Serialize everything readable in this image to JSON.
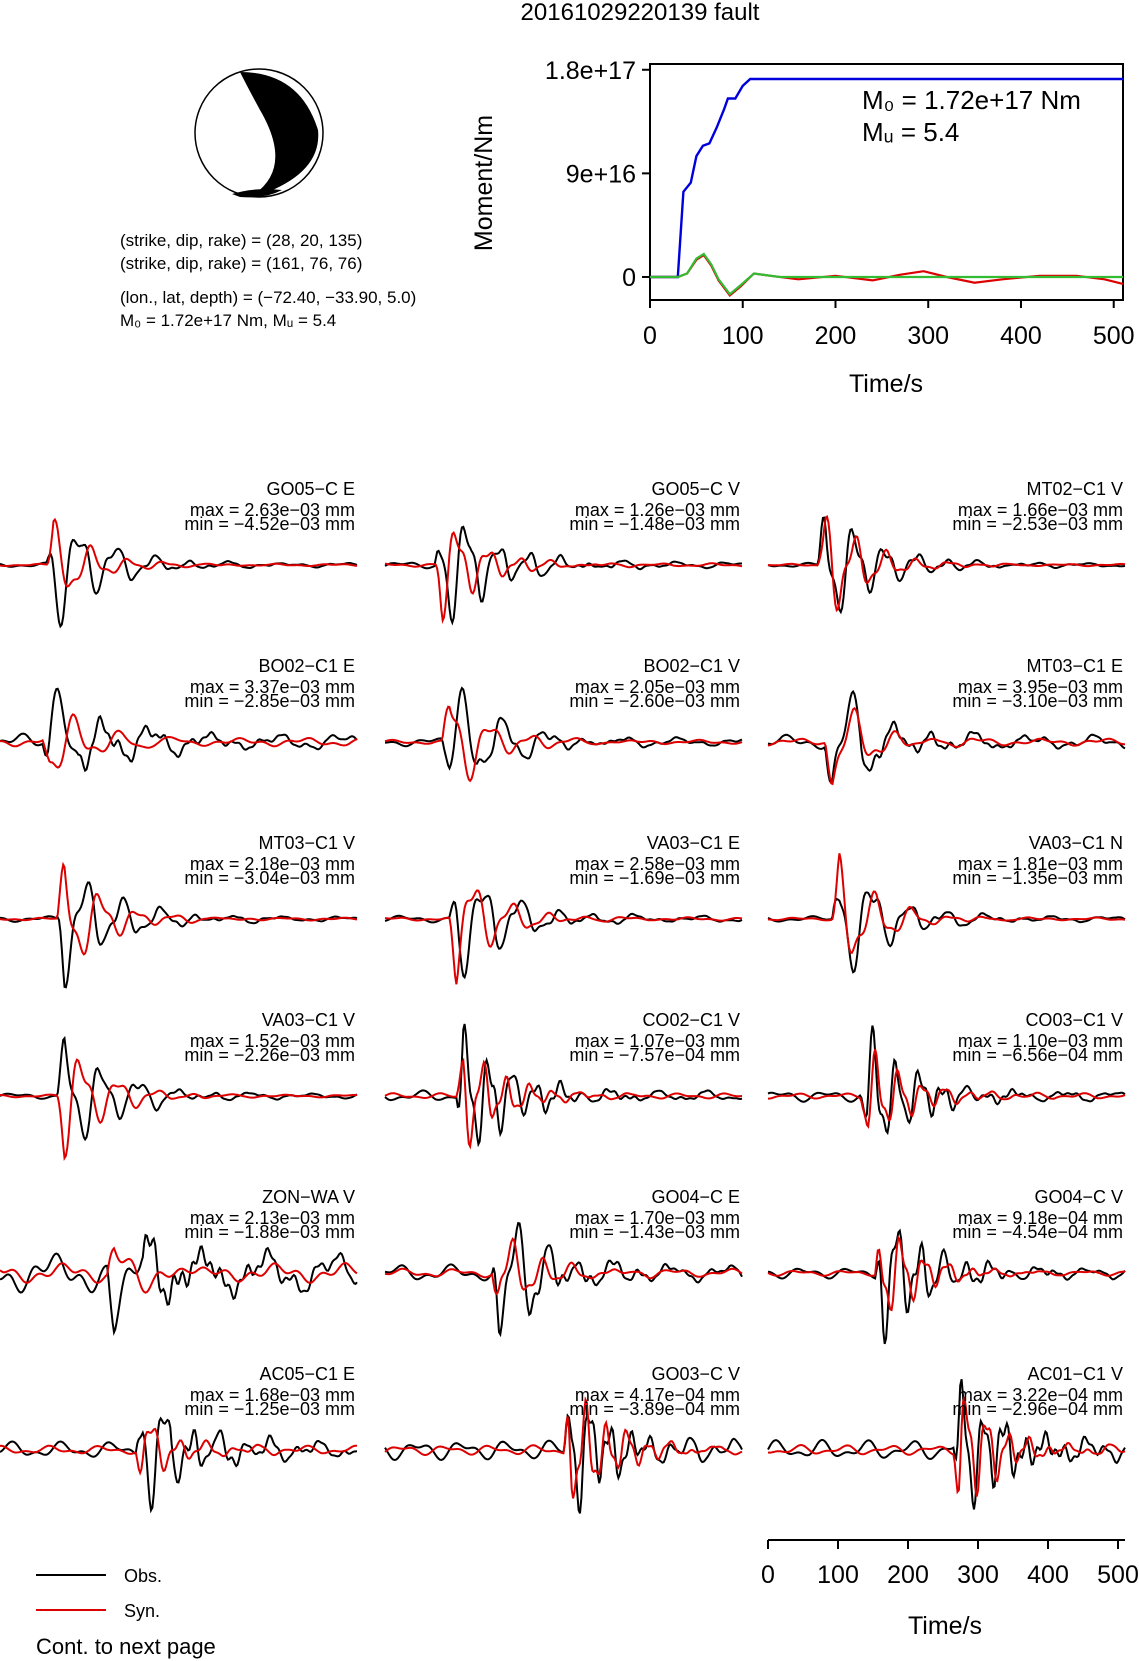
{
  "page": {
    "title": "20161029220139 fault",
    "cont_note": "Cont. to next page"
  },
  "colors": {
    "observed": "#000000",
    "synthetic": "#dd0000",
    "moment_cumulative": "#0000dd",
    "rate_obs": "#33bb33",
    "rate_syn": "#dd0000",
    "beachball_fill": "#000000"
  },
  "source_info": {
    "line1": "(strike, dip, rake) = (28, 20, 135)",
    "line2": "(strike, dip, rake) = (161, 76, 76)",
    "line3": "(lon., lat, depth) = (−72.40, −33.90, 5.0)",
    "line4": "M₀ = 1.72e+17 Nm, Mᵤ = 5.4"
  },
  "chart_data": [
    {
      "type": "line",
      "name": "moment",
      "ylabel": "Moment/Nm",
      "xlabel": "Time/s",
      "xlim": [
        0,
        510
      ],
      "ylim": [
        -20000000000000000,
        185000000000000000
      ],
      "xticks": [
        "0",
        "100",
        "200",
        "300",
        "400",
        "500"
      ],
      "yticks": [
        "0",
        "9e+16",
        "1.8e+17"
      ],
      "annotations": [
        "M₀ = 1.72e+17 Nm",
        "Mᵤ = 5.4"
      ],
      "series": [
        {
          "values": [
            [
              0,
              0
            ],
            [
              30,
              0
            ],
            [
              36,
              7.4e+16
            ],
            [
              44,
              8.2e+16
            ],
            [
              50,
              1.05e+17
            ],
            [
              57,
              1.14e+17
            ],
            [
              64,
              1.16e+17
            ],
            [
              72,
              1.3e+17
            ],
            [
              80,
              1.46e+17
            ],
            [
              84,
              1.55e+17
            ],
            [
              92,
              1.55e+17
            ],
            [
              100,
              1.66e+17
            ],
            [
              108,
              1.72e+17
            ],
            [
              510,
              1.72e+17
            ]
          ]
        },
        {
          "values": [
            [
              0,
              0
            ],
            [
              30,
              0
            ],
            [
              40,
              3000000000000000.0
            ],
            [
              50,
              1.5e+16
            ],
            [
              58,
              1.9e+16
            ],
            [
              66,
              1e+16
            ],
            [
              74,
              -3000000000000000.0
            ],
            [
              86,
              -1.6e+16
            ],
            [
              98,
              -8000000000000000.0
            ],
            [
              112,
              3000000000000000.0
            ],
            [
              130,
              1000000000000000.0
            ],
            [
              160,
              -2000000000000000.0
            ],
            [
              200,
              1000000000000000.0
            ],
            [
              240,
              -3000000000000000.0
            ],
            [
              270,
              2000000000000000.0
            ],
            [
              295,
              5000000000000000.0
            ],
            [
              320,
              0
            ],
            [
              350,
              -5000000000000000.0
            ],
            [
              380,
              -2000000000000000.0
            ],
            [
              420,
              1000000000000000.0
            ],
            [
              460,
              1000000000000000.0
            ],
            [
              490,
              -2000000000000000.0
            ],
            [
              510,
              -6000000000000000.0
            ]
          ]
        },
        {
          "values": [
            [
              0,
              0
            ],
            [
              30,
              0
            ],
            [
              40,
              3000000000000000.0
            ],
            [
              50,
              1.6e+16
            ],
            [
              58,
              2e+16
            ],
            [
              66,
              1.1e+16
            ],
            [
              74,
              -2000000000000000.0
            ],
            [
              86,
              -1.5e+16
            ],
            [
              98,
              -7000000000000000.0
            ],
            [
              112,
              3000000000000000.0
            ],
            [
              140,
              0
            ],
            [
              510,
              0
            ]
          ]
        }
      ]
    },
    {
      "type": "line",
      "name": "waveforms",
      "xlabel": "Time/s",
      "xlim": [
        0,
        510
      ],
      "xticks": [
        "0",
        "100",
        "200",
        "300",
        "400",
        "500"
      ],
      "legend": [
        "Obs.",
        "Syn."
      ],
      "panels": [
        {
          "station": "GO05−C E",
          "max": "max = 2.63e−03 mm",
          "min": "min = −4.52e−03 mm",
          "onset": 0.13,
          "amp_syn": 0.6,
          "amp_obs": 0.85,
          "noise": 0.08,
          "freq": 1.0,
          "seed": 1
        },
        {
          "station": "GO05−C V",
          "max": "max = 1.26e−03 mm",
          "min": "min = −1.48e−03 mm",
          "onset": 0.14,
          "amp_syn": 0.75,
          "amp_obs": 0.9,
          "noise": 0.12,
          "freq": 1.2,
          "seed": 2
        },
        {
          "station": "MT02−C1 V",
          "max": "max = 1.66e−03 mm",
          "min": "min = −2.53e−03 mm",
          "onset": 0.14,
          "amp_syn": 0.85,
          "amp_obs": 0.85,
          "noise": 0.08,
          "freq": 1.2,
          "seed": 3
        },
        {
          "station": "BO02−C1 E",
          "max": "max = 3.37e−03 mm",
          "min": "min = −2.85e−03 mm",
          "onset": 0.12,
          "amp_syn": 0.65,
          "amp_obs": 0.85,
          "noise": 0.3,
          "freq": 0.8,
          "seed": 4
        },
        {
          "station": "BO02−C1 V",
          "max": "max = 2.05e−03 mm",
          "min": "min = −2.60e−03 mm",
          "onset": 0.16,
          "amp_syn": 0.8,
          "amp_obs": 0.85,
          "noise": 0.15,
          "freq": 0.9,
          "seed": 5
        },
        {
          "station": "MT03−C1 E",
          "max": "max = 3.95e−03 mm",
          "min": "min = −3.10e−03 mm",
          "onset": 0.16,
          "amp_syn": 0.7,
          "amp_obs": 0.85,
          "noise": 0.25,
          "freq": 0.9,
          "seed": 6
        },
        {
          "station": "MT03−C1 V",
          "max": "max = 2.18e−03 mm",
          "min": "min = −3.04e−03 mm",
          "onset": 0.16,
          "amp_syn": 0.85,
          "amp_obs": 0.85,
          "noise": 0.1,
          "freq": 1.0,
          "seed": 7
        },
        {
          "station": "VA03−C1 E",
          "max": "max = 2.58e−03 mm",
          "min": "min = −1.69e−03 mm",
          "onset": 0.18,
          "amp_syn": 0.85,
          "amp_obs": 0.85,
          "noise": 0.12,
          "freq": 1.0,
          "seed": 8
        },
        {
          "station": "VA03−C1 N",
          "max": "max = 1.81e−03 mm",
          "min": "min = −1.35e−03 mm",
          "onset": 0.18,
          "amp_syn": 0.85,
          "amp_obs": 0.85,
          "noise": 0.1,
          "freq": 1.0,
          "seed": 9
        },
        {
          "station": "VA03−C1 V",
          "max": "max = 1.52e−03 mm",
          "min": "min = −2.26e−03 mm",
          "onset": 0.16,
          "amp_syn": 0.85,
          "amp_obs": 0.85,
          "noise": 0.1,
          "freq": 1.0,
          "seed": 10
        },
        {
          "station": "CO02−C1 V",
          "max": "max = 1.07e−03 mm",
          "min": "min = −7.57e−04 mm",
          "onset": 0.2,
          "amp_syn": 0.75,
          "amp_obs": 0.9,
          "noise": 0.2,
          "freq": 1.6,
          "seed": 11
        },
        {
          "station": "CO03−C1 V",
          "max": "max = 1.10e−03 mm",
          "min": "min = −6.56e−04 mm",
          "onset": 0.26,
          "amp_syn": 0.7,
          "amp_obs": 0.9,
          "noise": 0.2,
          "freq": 1.6,
          "seed": 12
        },
        {
          "station": "ZON−WA V",
          "max": "max = 2.13e−03 mm",
          "min": "min = −1.88e−03 mm",
          "onset": 0.3,
          "amp_syn": 0.55,
          "amp_obs": 0.95,
          "noise": 0.7,
          "freq": 0.6,
          "seed": 13
        },
        {
          "station": "GO04−C E",
          "max": "max = 1.70e−03 mm",
          "min": "min = −1.43e−03 mm",
          "onset": 0.3,
          "amp_syn": 0.6,
          "amp_obs": 0.9,
          "noise": 0.3,
          "freq": 1.2,
          "seed": 14
        },
        {
          "station": "GO04−C V",
          "max": "max = 9.18e−04 mm",
          "min": "min = −4.54e−04 mm",
          "onset": 0.3,
          "amp_syn": 0.75,
          "amp_obs": 0.9,
          "noise": 0.2,
          "freq": 1.6,
          "seed": 15
        },
        {
          "station": "AC05−C1 E",
          "max": "max = 1.68e−03 mm",
          "min": "min = −1.25e−03 mm",
          "onset": 0.38,
          "amp_syn": 0.5,
          "amp_obs": 0.9,
          "noise": 0.3,
          "freq": 1.4,
          "seed": 16
        },
        {
          "station": "GO03−C V",
          "max": "max = 4.17e−04 mm",
          "min": "min = −3.89e−04 mm",
          "onset": 0.5,
          "amp_syn": 0.9,
          "amp_obs": 0.85,
          "noise": 0.35,
          "freq": 1.8,
          "seed": 17
        },
        {
          "station": "AC01−C1 V",
          "max": "max = 3.22e−04 mm",
          "min": "min = −2.96e−04 mm",
          "onset": 0.52,
          "amp_syn": 0.9,
          "amp_obs": 0.85,
          "noise": 0.35,
          "freq": 1.8,
          "seed": 18
        }
      ]
    }
  ]
}
